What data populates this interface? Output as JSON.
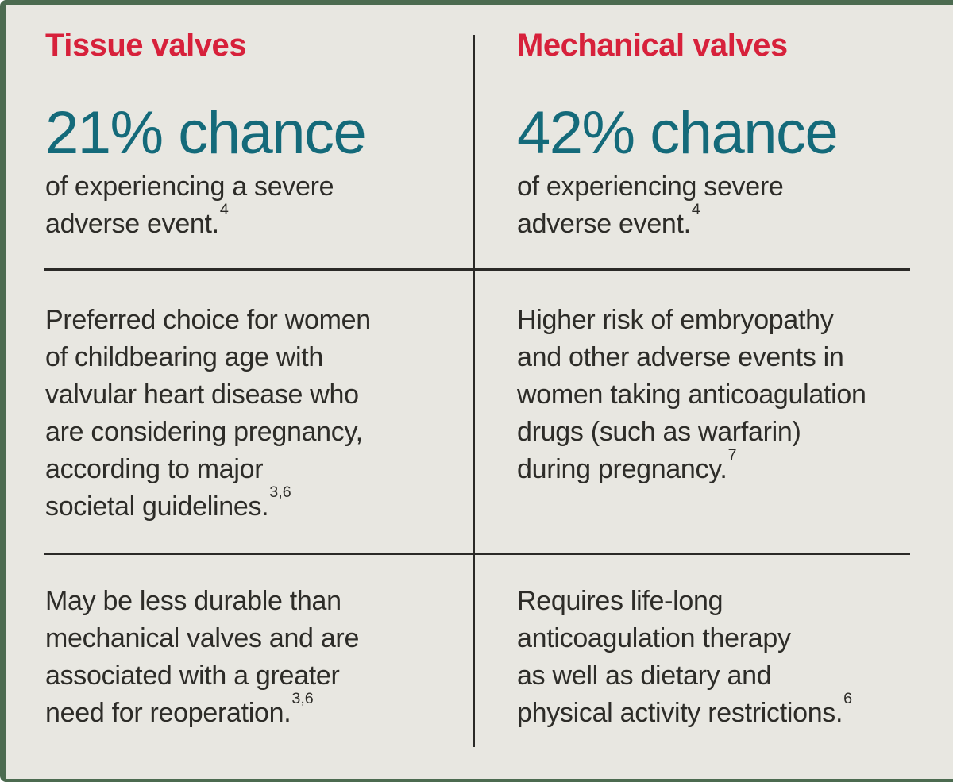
{
  "theme": {
    "background": "#e8e7e1",
    "frame_green": "#4c6b50",
    "header_red": "#d7213b",
    "stat_teal": "#146a7a",
    "body_text": "#2d2c28",
    "rule_color": "#2b2a27"
  },
  "columns": [
    {
      "header": "Tissue valves",
      "stat": "21% chance",
      "stat_caption_lines": [
        "of experiencing a severe",
        "adverse event."
      ],
      "stat_ref": "4",
      "row2_lines": [
        "Preferred choice for women",
        "of childbearing age with",
        "valvular heart disease who",
        "are considering pregnancy,",
        "according to major",
        "societal guidelines."
      ],
      "row2_ref": "3,6",
      "row3_lines": [
        "May be less durable than",
        "mechanical valves and are",
        "associated with a greater",
        "need for reoperation."
      ],
      "row3_ref": "3,6"
    },
    {
      "header": "Mechanical valves",
      "stat": "42% chance",
      "stat_caption_lines": [
        "of experiencing severe",
        "adverse event."
      ],
      "stat_ref": "4",
      "row2_lines": [
        "Higher risk of embryopathy",
        "and other adverse events in",
        "women taking anticoagulation",
        "drugs (such as warfarin)",
        "during pregnancy."
      ],
      "row2_ref": "7",
      "row3_lines": [
        "Requires life-long",
        "anticoagulation therapy",
        "as well as dietary and",
        "physical activity restrictions."
      ],
      "row3_ref": "6"
    }
  ]
}
